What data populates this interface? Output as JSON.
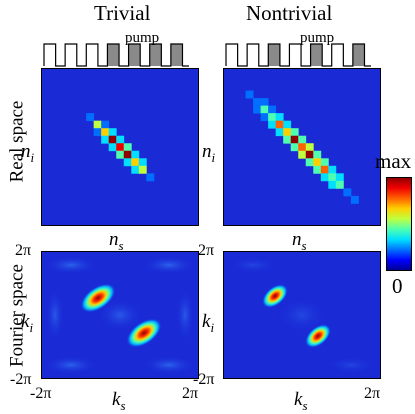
{
  "columns": {
    "left_title": "Trivial",
    "right_title": "Nontrivial",
    "pump_label": "pump"
  },
  "rows": {
    "top_label": "Real space",
    "bottom_label": "Fourier space"
  },
  "axes": {
    "real_y": {
      "base": "n",
      "sub": "i"
    },
    "real_x": {
      "base": "n",
      "sub": "s"
    },
    "fourier_y": {
      "base": "k",
      "sub": "i"
    },
    "fourier_x": {
      "base": "k",
      "sub": "s"
    },
    "tick_max": "2π",
    "tick_min": "-2π"
  },
  "colorbar": {
    "max_label": "max",
    "min_label": "0",
    "colors": [
      "#00008f",
      "#0000ff",
      "#006fff",
      "#00dfff",
      "#4fffaf",
      "#bfff3f",
      "#ffcf00",
      "#ff6000",
      "#ef0000",
      "#8f0000"
    ]
  },
  "pump_patterns": {
    "trivial": [
      0,
      0,
      0,
      1,
      1,
      1,
      1
    ],
    "nontrivial": [
      0,
      0,
      1,
      0,
      1,
      0,
      1
    ]
  },
  "panel_colors": {
    "background": "#1a2bd6",
    "pump_filled": "#8a8a8a"
  }
}
